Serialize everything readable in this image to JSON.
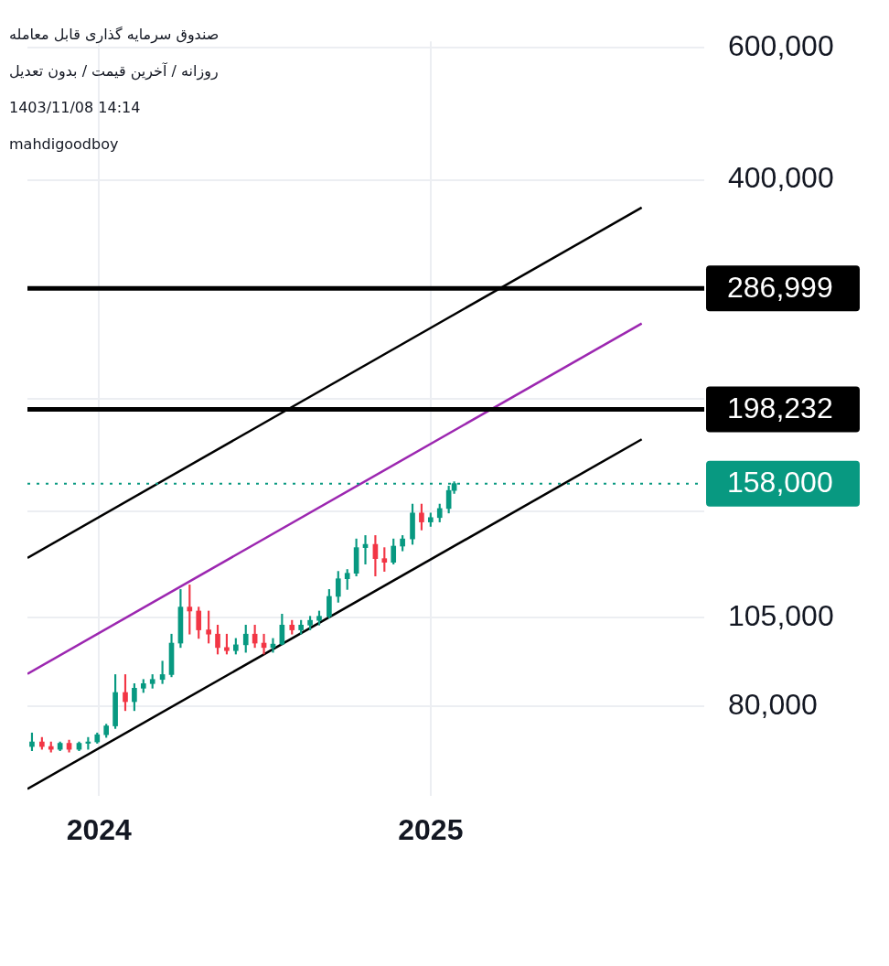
{
  "chart_data": {
    "type": "candlestick",
    "title": "صندوق سرمایه گذاری قابل معامله",
    "subtitle": "روزانه / آخرین قیمت / بدون تعدیل",
    "annotations": [
      "1403/11/08 14:14",
      "mahdigoodboy"
    ],
    "log": true,
    "grid": true,
    "marker": "none",
    "xlim": [
      "2023-10-14",
      "2025-10-30"
    ],
    "xticks": [
      {
        "value": "2024-01-01",
        "label": "2024"
      },
      {
        "value": "2025-01-01",
        "label": "2025"
      }
    ],
    "ylim": [
      60800,
      611000
    ],
    "yticks": [
      {
        "value": 80000,
        "label": "80,000"
      },
      {
        "value": 105000,
        "label": "105,000"
      },
      {
        "value": 145000,
        "label": null
      },
      {
        "value": 205000,
        "label": null
      },
      {
        "value": 400000,
        "label": "400,000"
      },
      {
        "value": 600000,
        "label": "600,000"
      }
    ],
    "ref_lines": [
      {
        "axis": "y",
        "value": 286999,
        "label": "286,999",
        "color": "#000000",
        "line_style": "solid"
      },
      {
        "axis": "y",
        "value": 198232,
        "label": "198,232",
        "color": "#000000",
        "line_style": "solid"
      },
      {
        "axis": "y",
        "value": 158000,
        "label": "158,000",
        "color": "#089981",
        "line_style": "dotted"
      }
    ],
    "series": [
      {
        "x": [
          "2023-10-19",
          "2023-10-30",
          "2023-11-09",
          "2023-11-19",
          "2023-11-29",
          "2023-12-10",
          "2023-12-20",
          "2023-12-30",
          "2024-01-09",
          "2024-01-19",
          "2024-01-30",
          "2024-02-09",
          "2024-02-19",
          "2024-02-29",
          "2024-03-11",
          "2024-03-21",
          "2024-03-31",
          "2024-04-10",
          "2024-04-20",
          "2024-05-01",
          "2024-05-11",
          "2024-05-21",
          "2024-05-31",
          "2024-06-11",
          "2024-06-21",
          "2024-07-01",
          "2024-07-11",
          "2024-07-21",
          "2024-08-01",
          "2024-08-11",
          "2024-08-21",
          "2024-08-31",
          "2024-09-11",
          "2024-09-21",
          "2024-10-01",
          "2024-10-11",
          "2024-10-21",
          "2024-11-01",
          "2024-11-11",
          "2024-11-21",
          "2024-12-01",
          "2024-12-12",
          "2024-12-22",
          "2025-01-01",
          "2025-01-11",
          "2025-01-21",
          "2025-01-27"
        ],
        "ohlc": [
          [
            70700,
            73700,
            69800,
            71700
          ],
          [
            71700,
            72700,
            70100,
            70700
          ],
          [
            70700,
            71700,
            69500,
            70100
          ],
          [
            70100,
            71700,
            69800,
            71400
          ],
          [
            71400,
            72100,
            69500,
            70100
          ],
          [
            70100,
            71700,
            69800,
            71400
          ],
          [
            71400,
            72700,
            70100,
            71700
          ],
          [
            71700,
            73700,
            71400,
            73300
          ],
          [
            73300,
            75700,
            72700,
            75300
          ],
          [
            75300,
            88100,
            74700,
            83400
          ],
          [
            83400,
            88100,
            78900,
            81100
          ],
          [
            81100,
            85700,
            78900,
            84500
          ],
          [
            84500,
            86800,
            83400,
            85700
          ],
          [
            85700,
            88100,
            84500,
            86800
          ],
          [
            86800,
            91800,
            85700,
            88100
          ],
          [
            88100,
            99700,
            87500,
            97000
          ],
          [
            97000,
            114300,
            95700,
            108300
          ],
          [
            108300,
            115900,
            99700,
            107000
          ],
          [
            107000,
            108300,
            98400,
            101000
          ],
          [
            101000,
            107000,
            97000,
            99700
          ],
          [
            99700,
            102500,
            93800,
            95700
          ],
          [
            95700,
            99700,
            93800,
            94800
          ],
          [
            94800,
            98400,
            93800,
            96500
          ],
          [
            96500,
            102500,
            94300,
            99700
          ],
          [
            99700,
            102500,
            95700,
            97000
          ],
          [
            97000,
            99700,
            93800,
            95700
          ],
          [
            95700,
            98400,
            94300,
            96700
          ],
          [
            96700,
            106000,
            96500,
            102500
          ],
          [
            102500,
            104000,
            99700,
            101000
          ],
          [
            101000,
            104000,
            99700,
            102500
          ],
          [
            102500,
            105300,
            101000,
            104000
          ],
          [
            104000,
            107000,
            102500,
            105300
          ],
          [
            105300,
            114300,
            104700,
            111900
          ],
          [
            111900,
            120800,
            109900,
            118100
          ],
          [
            118100,
            121500,
            114300,
            120100
          ],
          [
            120100,
            133400,
            119100,
            129900
          ],
          [
            129900,
            134800,
            123500,
            131200
          ],
          [
            131200,
            134800,
            119100,
            125600
          ],
          [
            125600,
            129900,
            120800,
            124200
          ],
          [
            124200,
            133400,
            123500,
            130500
          ],
          [
            130500,
            134800,
            128600,
            133400
          ],
          [
            133400,
            148400,
            131200,
            144400
          ],
          [
            144400,
            148400,
            137100,
            140500
          ],
          [
            140500,
            144400,
            138600,
            142400
          ],
          [
            142400,
            148400,
            140500,
            146400
          ],
          [
            146400,
            156800,
            144400,
            154700
          ],
          [
            154700,
            158900,
            153300,
            158000
          ]
        ],
        "colors": [
          "#089981",
          "#f23645",
          "#f23645",
          "#089981",
          "#f23645",
          "#089981",
          "#089981",
          "#089981",
          "#089981",
          "#089981",
          "#f23645",
          "#089981",
          "#089981",
          "#089981",
          "#089981",
          "#089981",
          "#089981",
          "#f23645",
          "#f23645",
          "#f23645",
          "#f23645",
          "#f23645",
          "#089981",
          "#089981",
          "#f23645",
          "#f23645",
          "#089981",
          "#089981",
          "#f23645",
          "#089981",
          "#089981",
          "#089981",
          "#089981",
          "#089981",
          "#089981",
          "#089981",
          "#089981",
          "#f23645",
          "#f23645",
          "#089981",
          "#089981",
          "#089981",
          "#f23645",
          "#089981",
          "#089981",
          "#089981",
          "#089981"
        ]
      },
      {
        "type": "line",
        "x": [
          "2023-10-14",
          "2025-08-22"
        ],
        "values": [
          125900,
          367500
        ],
        "color": "#000000"
      },
      {
        "type": "line",
        "x": [
          "2023-10-14",
          "2025-08-22"
        ],
        "values": [
          88300,
          257800
        ],
        "color": "#9c27b0"
      },
      {
        "type": "line",
        "x": [
          "2023-10-14",
          "2025-08-22"
        ],
        "values": [
          62100,
          180900
        ],
        "color": "#000000"
      }
    ]
  }
}
